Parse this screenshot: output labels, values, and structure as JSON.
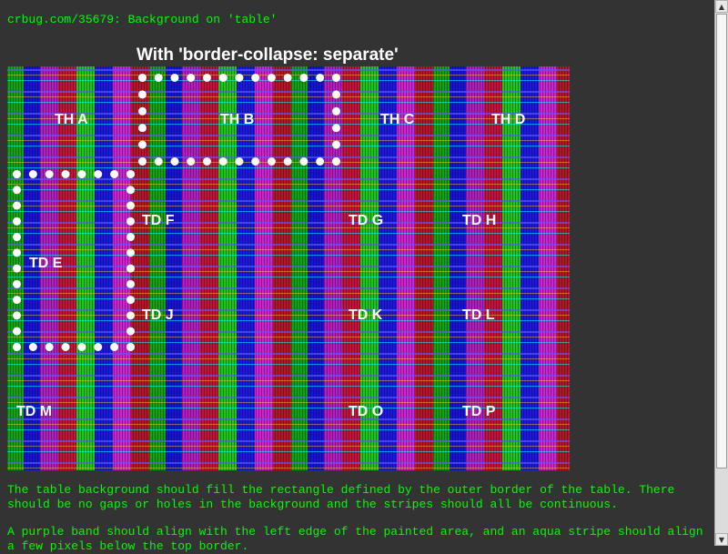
{
  "header": {
    "link_text": "crbug.com/35679: Background on 'table'"
  },
  "table": {
    "caption": "With 'border-collapse: separate'",
    "colors": {
      "green": "#12a312",
      "blue": "#1515d8",
      "purple": "#b51fc0",
      "red": "#c4143c",
      "aqua": "#00ffff",
      "yellow": "#ffd232",
      "page_background": "#333333",
      "text_green": "#00ff00"
    },
    "headers": [
      "TH A",
      "TH B",
      "TH C",
      "TH D"
    ],
    "rows": [
      [
        "TD E",
        "TD F",
        "TD G",
        "TD H"
      ],
      [
        "TD J",
        "TD K",
        "TD L"
      ],
      [
        "TD M",
        "TD O",
        "TD P"
      ]
    ]
  },
  "description": {
    "paragraph_1": "The table background should fill the rectangle defined by the outer border of the table. There should be no gaps or holes in the background and the stripes should all be continuous.",
    "paragraph_2": "A purple band should align with the left edge of the painted area, and an aqua stripe should align a few pixels below the top border."
  }
}
